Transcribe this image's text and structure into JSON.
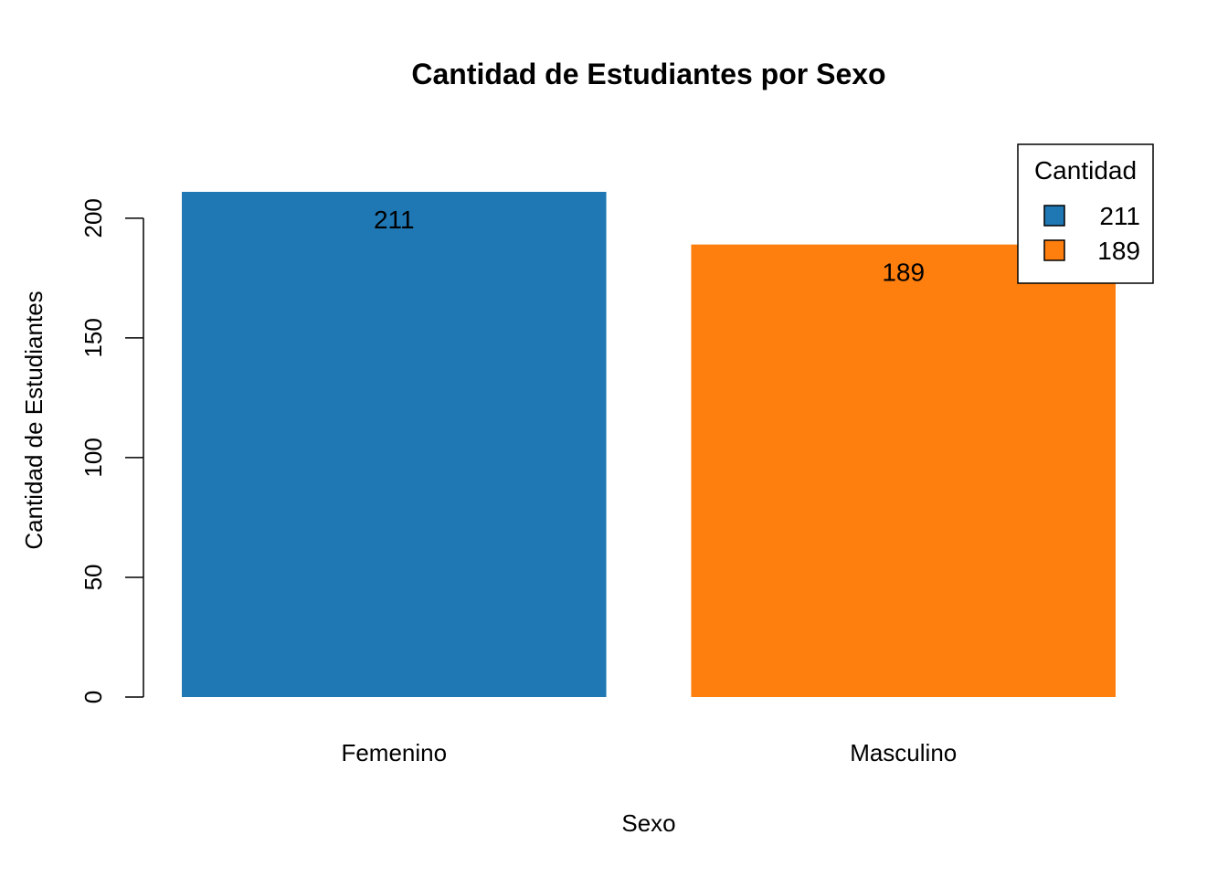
{
  "chart_data": {
    "type": "bar",
    "title": "Cantidad de Estudiantes por Sexo",
    "xlabel": "Sexo",
    "ylabel": "Cantidad de Estudiantes",
    "categories": [
      "Femenino",
      "Masculino"
    ],
    "values": [
      211,
      189
    ],
    "data_labels": [
      "211",
      "189"
    ],
    "colors": [
      "#1f77b4",
      "#ff7f0e"
    ],
    "ylim": [
      0,
      211
    ],
    "yticks": [
      0,
      50,
      100,
      150,
      200
    ],
    "ytick_labels": [
      "0",
      "50",
      "100",
      "150",
      "200"
    ],
    "grid": false,
    "legend": {
      "title": "Cantidad",
      "position": "top-right",
      "entries": [
        {
          "label": "211",
          "color": "#1f77b4"
        },
        {
          "label": "189",
          "color": "#ff7f0e"
        }
      ]
    }
  }
}
